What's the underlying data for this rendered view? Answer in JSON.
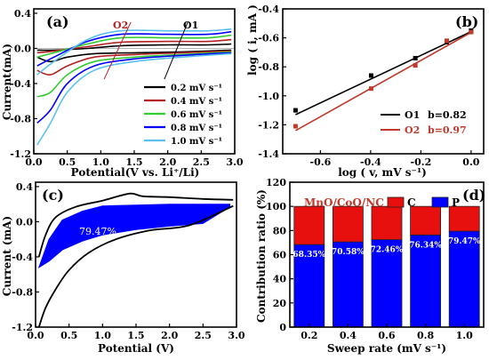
{
  "chart_data": [
    {
      "panel": "(a)",
      "type": "line",
      "xlabel": "Potential(V vs. Li⁺/Li)",
      "ylabel": "Current(mA)",
      "xlim": [
        0.0,
        3.0
      ],
      "ylim": [
        -1.2,
        0.45
      ],
      "xticks": [
        "0.0",
        "0.5",
        "1.0",
        "1.5",
        "2.0",
        "2.5",
        "3.0"
      ],
      "yticks": [
        "0.4",
        "0.0",
        "-0.4",
        "-0.8",
        "-1.2"
      ],
      "annotations": [
        "O2",
        "O1"
      ],
      "legend_position": "bottom-right",
      "series": [
        {
          "name": "0.2 mV s⁻¹",
          "color": "#000000",
          "upper": [
            [
              0.05,
              -0.02
            ],
            [
              0.3,
              -0.02
            ],
            [
              0.8,
              0.0
            ],
            [
              1.3,
              0.03
            ],
            [
              2.0,
              0.04
            ],
            [
              2.6,
              0.04
            ],
            [
              2.95,
              0.05
            ]
          ],
          "lower": [
            [
              0.05,
              -0.1
            ],
            [
              0.25,
              -0.15
            ],
            [
              0.5,
              -0.1
            ],
            [
              0.9,
              -0.06
            ],
            [
              1.5,
              -0.05
            ],
            [
              2.2,
              -0.04
            ],
            [
              2.95,
              -0.02
            ]
          ]
        },
        {
          "name": "0.4 mV s⁻¹",
          "color": "#b22222",
          "upper": [
            [
              0.05,
              -0.05
            ],
            [
              0.3,
              -0.03
            ],
            [
              0.8,
              0.02
            ],
            [
              1.3,
              0.07
            ],
            [
              2.0,
              0.08
            ],
            [
              2.6,
              0.08
            ],
            [
              2.95,
              0.1
            ]
          ],
          "lower": [
            [
              0.05,
              -0.25
            ],
            [
              0.25,
              -0.3
            ],
            [
              0.5,
              -0.2
            ],
            [
              0.9,
              -0.1
            ],
            [
              1.5,
              -0.07
            ],
            [
              2.2,
              -0.05
            ],
            [
              2.95,
              -0.03
            ]
          ]
        },
        {
          "name": "0.6 mV s⁻¹",
          "color": "#33cc33",
          "upper": [
            [
              0.05,
              -0.1
            ],
            [
              0.3,
              -0.05
            ],
            [
              0.8,
              0.05
            ],
            [
              1.3,
              0.12
            ],
            [
              2.0,
              0.12
            ],
            [
              2.6,
              0.12
            ],
            [
              2.95,
              0.15
            ]
          ],
          "lower": [
            [
              0.05,
              -0.55
            ],
            [
              0.25,
              -0.5
            ],
            [
              0.5,
              -0.3
            ],
            [
              0.9,
              -0.15
            ],
            [
              1.5,
              -0.1
            ],
            [
              2.2,
              -0.07
            ],
            [
              2.95,
              -0.04
            ]
          ]
        },
        {
          "name": "0.8 mV s⁻¹",
          "color": "#0000ff",
          "upper": [
            [
              0.05,
              -0.2
            ],
            [
              0.3,
              -0.1
            ],
            [
              0.8,
              0.08
            ],
            [
              1.3,
              0.16
            ],
            [
              2.0,
              0.16
            ],
            [
              2.6,
              0.16
            ],
            [
              2.95,
              0.19
            ]
          ],
          "lower": [
            [
              0.05,
              -0.85
            ],
            [
              0.25,
              -0.7
            ],
            [
              0.5,
              -0.4
            ],
            [
              0.9,
              -0.2
            ],
            [
              1.5,
              -0.12
            ],
            [
              2.2,
              -0.08
            ],
            [
              2.95,
              -0.05
            ]
          ]
        },
        {
          "name": "1.0 mV s⁻¹",
          "color": "#5bc0f0",
          "upper": [
            [
              0.05,
              -0.3
            ],
            [
              0.3,
              -0.15
            ],
            [
              0.8,
              0.1
            ],
            [
              1.3,
              0.2
            ],
            [
              2.0,
              0.2
            ],
            [
              2.6,
              0.2
            ],
            [
              2.95,
              0.22
            ]
          ],
          "lower": [
            [
              0.05,
              -1.1
            ],
            [
              0.25,
              -0.85
            ],
            [
              0.5,
              -0.5
            ],
            [
              0.9,
              -0.25
            ],
            [
              1.5,
              -0.15
            ],
            [
              2.2,
              -0.1
            ],
            [
              2.95,
              -0.06
            ]
          ]
        }
      ]
    },
    {
      "panel": "(b)",
      "type": "scatter",
      "xlabel": "log ( v, mV s⁻¹)",
      "ylabel": "log ( i, mA )",
      "xlim": [
        -0.75,
        0.05
      ],
      "ylim": [
        -1.4,
        -0.4
      ],
      "xticks": [
        "-0.6",
        "-0.4",
        "-0.2",
        "0.0"
      ],
      "yticks": [
        "-0.4",
        "-0.6",
        "-0.8",
        "-1.0",
        "-1.2",
        "-1.4"
      ],
      "legend_position": "bottom-right",
      "series": [
        {
          "name": "O1",
          "label": "b=0.82",
          "color": "#000000",
          "x": [
            -0.699,
            -0.398,
            -0.222,
            -0.097,
            0.0
          ],
          "y": [
            -1.1,
            -0.86,
            -0.74,
            -0.63,
            -0.55
          ],
          "fit": [
            [
              -0.699,
              -1.13
            ],
            [
              0.0,
              -0.557
            ]
          ]
        },
        {
          "name": "O2",
          "label": "b=0.97",
          "color": "#c0392b",
          "x": [
            -0.699,
            -0.398,
            -0.222,
            -0.097,
            0.0
          ],
          "y": [
            -1.21,
            -0.95,
            -0.79,
            -0.62,
            -0.56
          ],
          "fit": [
            [
              -0.699,
              -1.24
            ],
            [
              0.0,
              -0.562
            ]
          ]
        }
      ]
    },
    {
      "panel": "(c)",
      "type": "area",
      "xlabel": "Potential (V)",
      "ylabel": "Current (mA)",
      "xlim": [
        0.0,
        3.0
      ],
      "ylim": [
        -1.2,
        0.45
      ],
      "xticks": [
        "0.0",
        "0.5",
        "1.0",
        "1.5",
        "2.0",
        "2.5",
        "3.0"
      ],
      "yticks": [
        "0.4",
        "0.0",
        "-0.4",
        "-0.8",
        "-1.2"
      ],
      "annotation": "79.47%",
      "cv_upper": [
        [
          0.05,
          -0.4
        ],
        [
          0.15,
          -0.15
        ],
        [
          0.3,
          0.05
        ],
        [
          0.6,
          0.17
        ],
        [
          1.0,
          0.24
        ],
        [
          1.4,
          0.32
        ],
        [
          1.6,
          0.29
        ],
        [
          2.0,
          0.28
        ],
        [
          2.5,
          0.26
        ],
        [
          2.95,
          0.25
        ]
      ],
      "cv_lower": [
        [
          0.05,
          -1.2
        ],
        [
          0.15,
          -0.98
        ],
        [
          0.3,
          -0.77
        ],
        [
          0.5,
          -0.55
        ],
        [
          0.8,
          -0.35
        ],
        [
          1.2,
          -0.2
        ],
        [
          1.7,
          -0.1
        ],
        [
          2.3,
          -0.04
        ],
        [
          2.95,
          0.18
        ]
      ],
      "fill_upper": [
        [
          0.05,
          -0.52
        ],
        [
          0.2,
          -0.2
        ],
        [
          0.4,
          0.02
        ],
        [
          0.7,
          0.12
        ],
        [
          1.0,
          0.18
        ],
        [
          1.5,
          0.19
        ],
        [
          2.0,
          0.2
        ],
        [
          2.5,
          0.2
        ],
        [
          2.9,
          0.2
        ]
      ],
      "fill_lower": [
        [
          0.05,
          -0.52
        ],
        [
          0.2,
          -0.45
        ],
        [
          0.4,
          -0.32
        ],
        [
          0.7,
          -0.22
        ],
        [
          1.0,
          -0.15
        ],
        [
          1.5,
          -0.09
        ],
        [
          2.0,
          -0.05
        ],
        [
          2.5,
          -0.02
        ],
        [
          2.9,
          0.17
        ]
      ],
      "colors": {
        "fill": "#0000ff",
        "line": "#000000"
      }
    },
    {
      "panel": "(d)",
      "type": "bar",
      "title": "MnO/CoO/NC",
      "xlabel": "Sweep rate (mV s⁻¹)",
      "ylabel": "Contribution ratio (%)",
      "categories": [
        "0.2",
        "0.4",
        "0.6",
        "0.8",
        "1.0"
      ],
      "ylim": [
        0,
        120
      ],
      "yticks": [
        "0",
        "20",
        "40",
        "60",
        "80",
        "100",
        "120"
      ],
      "legend_position": "top",
      "series": [
        {
          "name": "P",
          "color": "#0000ff",
          "values": [
            68.35,
            70.58,
            72.46,
            76.34,
            79.47
          ],
          "labels": [
            "68.35%",
            "70.58%",
            "72.46%",
            "76.34%",
            "79.47%"
          ]
        },
        {
          "name": "C",
          "color": "#e8100f",
          "values": [
            31.65,
            29.42,
            27.54,
            23.66,
            20.53
          ]
        }
      ]
    }
  ]
}
